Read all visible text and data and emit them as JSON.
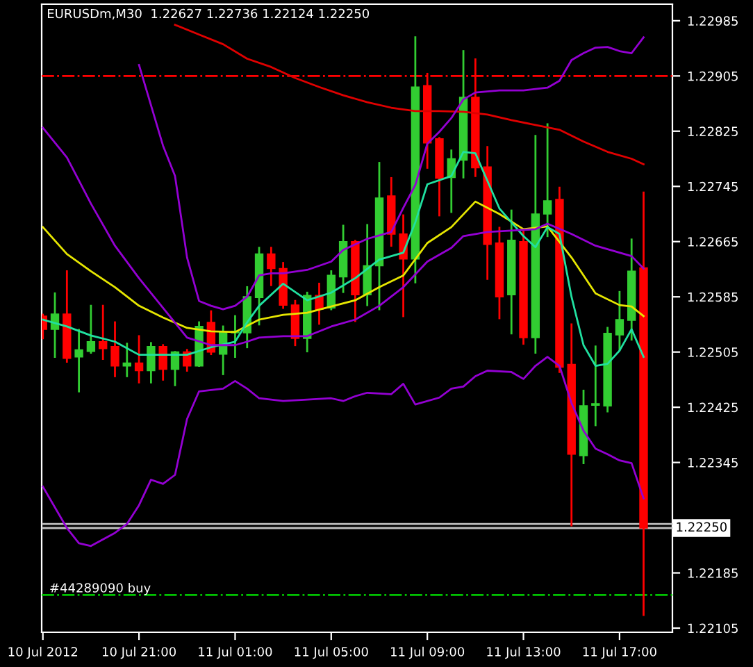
{
  "chart_data": {
    "type": "candlestick",
    "title": "EURUSDm,M30  1.22627 1.22736 1.22124 1.22250",
    "x": [
      "2012-07-10T17:00",
      "2012-07-10T17:30",
      "2012-07-10T18:00",
      "2012-07-10T18:30",
      "2012-07-10T19:00",
      "2012-07-10T19:30",
      "2012-07-10T20:00",
      "2012-07-10T20:30",
      "2012-07-10T21:00",
      "2012-07-10T21:30",
      "2012-07-10T22:00",
      "2012-07-10T22:30",
      "2012-07-10T23:00",
      "2012-07-10T23:30",
      "2012-07-11T00:00",
      "2012-07-11T00:30",
      "2012-07-11T01:00",
      "2012-07-11T01:30",
      "2012-07-11T02:00",
      "2012-07-11T02:30",
      "2012-07-11T03:00",
      "2012-07-11T03:30",
      "2012-07-11T04:00",
      "2012-07-11T04:30",
      "2012-07-11T05:00",
      "2012-07-11T05:30",
      "2012-07-11T06:00",
      "2012-07-11T06:30",
      "2012-07-11T07:00",
      "2012-07-11T07:30",
      "2012-07-11T08:00",
      "2012-07-11T08:30",
      "2012-07-11T09:00",
      "2012-07-11T09:30",
      "2012-07-11T10:00",
      "2012-07-11T10:30",
      "2012-07-11T11:00",
      "2012-07-11T11:30",
      "2012-07-11T12:00",
      "2012-07-11T12:30",
      "2012-07-11T13:00",
      "2012-07-11T13:30",
      "2012-07-11T14:00",
      "2012-07-11T14:30",
      "2012-07-11T15:00",
      "2012-07-11T15:30",
      "2012-07-11T16:00",
      "2012-07-11T16:30",
      "2012-07-11T17:00",
      "2012-07-11T17:30",
      "2012-07-11T18:00"
    ],
    "ohlc": [
      [
        1.22557,
        1.22559,
        1.22525,
        1.22538
      ],
      [
        1.22538,
        1.2259,
        1.22498,
        1.2256
      ],
      [
        1.2256,
        1.22622,
        1.22491,
        1.22496
      ],
      [
        1.22498,
        1.22537,
        1.22448,
        1.22508
      ],
      [
        1.22506,
        1.22572,
        1.22504,
        1.2252
      ],
      [
        1.2252,
        1.22572,
        1.22495,
        1.2251
      ],
      [
        1.22513,
        1.22548,
        1.2247,
        1.22485
      ],
      [
        1.22485,
        1.22517,
        1.2247,
        1.22489
      ],
      [
        1.22489,
        1.22528,
        1.22461,
        1.22478
      ],
      [
        1.22478,
        1.22518,
        1.22461,
        1.22513
      ],
      [
        1.22513,
        1.22515,
        1.22465,
        1.2248
      ],
      [
        1.2248,
        1.22505,
        1.22457,
        1.22505
      ],
      [
        1.22505,
        1.22508,
        1.22478,
        1.22485
      ],
      [
        1.22485,
        1.22548,
        1.22485,
        1.22542
      ],
      [
        1.22548,
        1.22564,
        1.22502,
        1.22505
      ],
      [
        1.22502,
        1.22542,
        1.22473,
        1.22533
      ],
      [
        1.22533,
        1.22557,
        1.22498,
        1.22535
      ],
      [
        1.22533,
        1.22599,
        1.22512,
        1.22585
      ],
      [
        1.22584,
        1.22656,
        1.22545,
        1.22647
      ],
      [
        1.22647,
        1.22656,
        1.22602,
        1.22626
      ],
      [
        1.22626,
        1.22634,
        1.22569,
        1.22573
      ],
      [
        1.22573,
        1.22579,
        1.22515,
        1.22525
      ],
      [
        1.22525,
        1.22591,
        1.22506,
        1.22587
      ],
      [
        1.22587,
        1.22604,
        1.22546,
        1.22567
      ],
      [
        1.22569,
        1.22622,
        1.22567,
        1.22616
      ],
      [
        1.22614,
        1.22688,
        1.22592,
        1.22665
      ],
      [
        1.22665,
        1.22666,
        1.2255,
        1.22588
      ],
      [
        1.22588,
        1.22689,
        1.22573,
        1.2263
      ],
      [
        1.2263,
        1.22779,
        1.22567,
        1.22728
      ],
      [
        1.22731,
        1.22757,
        1.22659,
        1.22676
      ],
      [
        1.22676,
        1.22703,
        1.22557,
        1.2264
      ],
      [
        1.2264,
        1.22961,
        1.22606,
        1.22889
      ],
      [
        1.22891,
        1.22908,
        1.22772,
        1.22808
      ],
      [
        1.22814,
        1.22815,
        1.22703,
        1.22757
      ],
      [
        1.22758,
        1.22797,
        1.22708,
        1.22785
      ],
      [
        1.22783,
        1.22941,
        1.22758,
        1.22874
      ],
      [
        1.22874,
        1.22929,
        1.2276,
        1.22772
      ],
      [
        1.22773,
        1.22802,
        1.22611,
        1.22661
      ],
      [
        1.22663,
        1.22685,
        1.22554,
        1.22585
      ],
      [
        1.22588,
        1.2271,
        1.22532,
        1.22667
      ],
      [
        1.22665,
        1.22683,
        1.22517,
        1.22526
      ],
      [
        1.22526,
        1.22818,
        1.22504,
        1.22705
      ],
      [
        1.22705,
        1.22835,
        1.22673,
        1.22724
      ],
      [
        1.22726,
        1.22743,
        1.22476,
        1.22483
      ],
      [
        1.22487,
        1.22545,
        1.22254,
        1.22357
      ],
      [
        1.22355,
        1.22449,
        1.22344,
        1.22427
      ],
      [
        1.22428,
        1.22513,
        1.22399,
        1.2243
      ],
      [
        1.22427,
        1.2254,
        1.22419,
        1.22532
      ],
      [
        1.2253,
        1.22592,
        1.22508,
        1.22552
      ],
      [
        1.22551,
        1.22668,
        1.22523,
        1.22622
      ],
      [
        1.22627,
        1.22736,
        1.22124,
        1.2225
      ]
    ],
    "colors": [
      "#ff0000",
      "#32cd32",
      "#ff0000",
      "#32cd32",
      "#32cd32",
      "#ff0000",
      "#ff0000",
      "#32cd32",
      "#ff0000",
      "#32cd32",
      "#ff0000",
      "#32cd32",
      "#ff0000",
      "#32cd32",
      "#ff0000",
      "#32cd32",
      "#32cd32",
      "#32cd32",
      "#32cd32",
      "#ff0000",
      "#ff0000",
      "#ff0000",
      "#32cd32",
      "#ff0000",
      "#32cd32",
      "#32cd32",
      "#ff0000",
      "#32cd32",
      "#32cd32",
      "#ff0000",
      "#ff0000",
      "#32cd32",
      "#ff0000",
      "#ff0000",
      "#32cd32",
      "#32cd32",
      "#ff0000",
      "#ff0000",
      "#ff0000",
      "#32cd32",
      "#ff0000",
      "#32cd32",
      "#32cd32",
      "#ff0000",
      "#ff0000",
      "#32cd32",
      "#32cd32",
      "#32cd32",
      "#32cd32",
      "#32cd32",
      "#ff0000"
    ],
    "series": [
      {
        "type": "line",
        "color": "#e00000",
        "x": [
          "2012-07-10T22:30",
          "2012-07-10T23:30",
          "2012-07-11T00:30",
          "2012-07-11T01:30",
          "2012-07-11T02:30",
          "2012-07-11T03:30",
          "2012-07-11T04:30",
          "2012-07-11T05:30",
          "2012-07-11T06:30",
          "2012-07-11T07:30",
          "2012-07-11T08:30",
          "2012-07-11T09:30",
          "2012-07-11T10:30",
          "2012-07-11T11:30",
          "2012-07-11T12:30",
          "2012-07-11T13:30",
          "2012-07-11T14:30",
          "2012-07-11T15:30",
          "2012-07-11T16:30",
          "2012-07-11T17:30",
          "2012-07-11T18:00"
        ],
        "values": [
          1.22979,
          1.22965,
          1.22951,
          1.2293,
          1.22918,
          1.22902,
          1.22889,
          1.22877,
          1.22867,
          1.22859,
          1.22854,
          1.22854,
          1.22853,
          1.22849,
          1.22841,
          1.22834,
          1.22827,
          1.2281,
          1.22795,
          1.22785,
          1.22777
        ]
      },
      {
        "type": "line",
        "color": "#e6e600",
        "x": [
          "2012-07-10T17:00",
          "2012-07-10T18:00",
          "2012-07-10T19:00",
          "2012-07-10T20:00",
          "2012-07-10T21:00",
          "2012-07-10T22:00",
          "2012-07-10T23:00",
          "2012-07-11T00:00",
          "2012-07-11T01:00",
          "2012-07-11T02:00",
          "2012-07-11T03:00",
          "2012-07-11T04:00",
          "2012-07-11T05:00",
          "2012-07-11T06:00",
          "2012-07-11T07:00",
          "2012-07-11T08:00",
          "2012-07-11T09:00",
          "2012-07-11T10:00",
          "2012-07-11T11:00",
          "2012-07-11T12:00",
          "2012-07-11T13:00",
          "2012-07-11T14:00",
          "2012-07-11T15:00",
          "2012-07-11T16:00",
          "2012-07-11T17:00",
          "2012-07-11T17:30",
          "2012-07-11T18:00"
        ],
        "values": [
          1.22686,
          1.22647,
          1.22622,
          1.22599,
          1.22572,
          1.22555,
          1.2254,
          1.22535,
          1.22534,
          1.22552,
          1.22559,
          1.22562,
          1.22571,
          1.2258,
          1.22599,
          1.22616,
          1.22663,
          1.22686,
          1.22723,
          1.22705,
          1.22683,
          1.22687,
          1.22642,
          1.2259,
          1.22573,
          1.22571,
          1.22557
        ]
      },
      {
        "type": "line",
        "color": "#20e0a0",
        "x": [
          "2012-07-10T17:00",
          "2012-07-10T18:00",
          "2012-07-10T19:00",
          "2012-07-10T20:00",
          "2012-07-10T21:00",
          "2012-07-10T22:00",
          "2012-07-10T23:00",
          "2012-07-11T00:00",
          "2012-07-11T01:00",
          "2012-07-11T01:30",
          "2012-07-11T02:00",
          "2012-07-11T03:00",
          "2012-07-11T04:00",
          "2012-07-11T05:00",
          "2012-07-11T06:00",
          "2012-07-11T07:00",
          "2012-07-11T08:00",
          "2012-07-11T08:30",
          "2012-07-11T09:00",
          "2012-07-11T10:00",
          "2012-07-11T10:30",
          "2012-07-11T11:00",
          "2012-07-11T11:30",
          "2012-07-11T12:00",
          "2012-07-11T13:00",
          "2012-07-11T13:30",
          "2012-07-11T14:00",
          "2012-07-11T14:30",
          "2012-07-11T15:00",
          "2012-07-11T15:30",
          "2012-07-11T16:00",
          "2012-07-11T16:30",
          "2012-07-11T17:00",
          "2012-07-11T17:30",
          "2012-07-11T18:00"
        ],
        "values": [
          1.22552,
          1.22542,
          1.22529,
          1.2252,
          1.22501,
          1.22501,
          1.22501,
          1.22512,
          1.2252,
          1.22548,
          1.22572,
          1.22604,
          1.2258,
          1.22591,
          1.22612,
          1.22639,
          1.22649,
          1.22693,
          1.22748,
          1.2276,
          1.22795,
          1.22793,
          1.22753,
          1.22713,
          1.22673,
          1.22657,
          1.22686,
          1.22676,
          1.22585,
          1.22515,
          1.22485,
          1.22488,
          1.22507,
          1.22538,
          1.22498
        ]
      },
      {
        "type": "line",
        "color": "#9400d3",
        "x": [
          "2012-07-10T21:00",
          "2012-07-10T22:00",
          "2012-07-10T22:30",
          "2012-07-10T23:00",
          "2012-07-10T23:30",
          "2012-07-11T00:00",
          "2012-07-11T00:30",
          "2012-07-11T01:00",
          "2012-07-11T01:30",
          "2012-07-11T02:00",
          "2012-07-11T02:30",
          "2012-07-11T03:00",
          "2012-07-11T04:00",
          "2012-07-11T05:00",
          "2012-07-11T05:30",
          "2012-07-11T06:30",
          "2012-07-11T07:30",
          "2012-07-11T08:00",
          "2012-07-11T08:30",
          "2012-07-11T09:00",
          "2012-07-11T09:30",
          "2012-07-11T10:00",
          "2012-07-11T10:30",
          "2012-07-11T11:00",
          "2012-07-11T12:00",
          "2012-07-11T13:00",
          "2012-07-11T14:00",
          "2012-07-11T14:30",
          "2012-07-11T15:00",
          "2012-07-11T15:30",
          "2012-07-11T16:00",
          "2012-07-11T16:30",
          "2012-07-11T17:00",
          "2012-07-11T17:30",
          "2012-07-11T18:00"
        ],
        "values": [
          1.22921,
          1.22804,
          1.2276,
          1.22642,
          1.22579,
          1.22572,
          1.22567,
          1.22572,
          1.22585,
          1.22616,
          1.22619,
          1.22619,
          1.22624,
          1.22636,
          1.22653,
          1.22669,
          1.22679,
          1.22714,
          1.22747,
          1.22807,
          1.22824,
          1.22844,
          1.22871,
          1.22881,
          1.22884,
          1.22884,
          1.22888,
          1.22898,
          1.22928,
          1.22938,
          1.22946,
          1.22947,
          1.22941,
          1.22938,
          1.22961
        ]
      },
      {
        "type": "line",
        "color": "#9400d3",
        "x": [
          "2012-07-10T17:00",
          "2012-07-10T18:00",
          "2012-07-10T19:00",
          "2012-07-10T20:00",
          "2012-07-10T21:00",
          "2012-07-10T22:00",
          "2012-07-10T23:00",
          "2012-07-11T00:00",
          "2012-07-11T01:00",
          "2012-07-11T01:30",
          "2012-07-11T02:00",
          "2012-07-11T03:00",
          "2012-07-11T04:00",
          "2012-07-11T05:00",
          "2012-07-11T06:00",
          "2012-07-11T07:00",
          "2012-07-11T08:00",
          "2012-07-11T09:00",
          "2012-07-11T10:00",
          "2012-07-11T10:30",
          "2012-07-11T11:30",
          "2012-07-11T12:30",
          "2012-07-11T13:30",
          "2012-07-11T14:00",
          "2012-07-11T15:00",
          "2012-07-11T16:00",
          "2012-07-11T17:00",
          "2012-07-11T17:30",
          "2012-07-11T18:00"
        ],
        "values": [
          1.2283,
          1.22787,
          1.2272,
          1.22659,
          1.22612,
          1.22569,
          1.22526,
          1.22515,
          1.22515,
          1.2252,
          1.22526,
          1.22528,
          1.22528,
          1.22542,
          1.22552,
          1.22572,
          1.22599,
          1.22636,
          1.22656,
          1.22673,
          1.22679,
          1.22681,
          1.22683,
          1.22691,
          1.22676,
          1.22659,
          1.22649,
          1.22644,
          1.22626
        ]
      },
      {
        "type": "line",
        "color": "#9400d3",
        "x": [
          "2012-07-10T17:00",
          "2012-07-10T18:00",
          "2012-07-10T18:30",
          "2012-07-10T19:00",
          "2012-07-10T20:00",
          "2012-07-10T20:30",
          "2012-07-10T21:00",
          "2012-07-10T21:30",
          "2012-07-10T22:00",
          "2012-07-10T22:30",
          "2012-07-10T23:00",
          "2012-07-10T23:30",
          "2012-07-11T00:30",
          "2012-07-11T01:00",
          "2012-07-11T01:30",
          "2012-07-11T02:00",
          "2012-07-11T03:00",
          "2012-07-11T04:00",
          "2012-07-11T05:00",
          "2012-07-11T05:30",
          "2012-07-11T06:00",
          "2012-07-11T06:30",
          "2012-07-11T07:30",
          "2012-07-11T08:00",
          "2012-07-11T08:30",
          "2012-07-11T09:30",
          "2012-07-11T10:00",
          "2012-07-11T10:30",
          "2012-07-11T11:00",
          "2012-07-11T11:30",
          "2012-07-11T12:30",
          "2012-07-11T13:00",
          "2012-07-11T13:30",
          "2012-07-11T14:00",
          "2012-07-11T14:30",
          "2012-07-11T15:00",
          "2012-07-11T15:30",
          "2012-07-11T16:00",
          "2012-07-11T16:30",
          "2012-07-11T17:00",
          "2012-07-11T17:30",
          "2012-07-11T18:00"
        ],
        "values": [
          1.2231,
          1.2225,
          1.22228,
          1.22224,
          1.22243,
          1.22256,
          1.22283,
          1.2232,
          1.22314,
          1.22327,
          1.22408,
          1.22448,
          1.22452,
          1.22463,
          1.22452,
          1.22438,
          1.22434,
          1.22436,
          1.22438,
          1.22434,
          1.22441,
          1.22446,
          1.22444,
          1.22459,
          1.22429,
          1.22439,
          1.22452,
          1.22455,
          1.2247,
          1.22478,
          1.22476,
          1.22466,
          1.22485,
          1.22498,
          1.22485,
          1.22431,
          1.22391,
          1.22365,
          1.22357,
          1.22348,
          1.22344,
          1.22293
        ]
      }
    ],
    "ref_lines": [
      {
        "axis": "y",
        "value": 1.22905,
        "label": null,
        "color": "#ff0000",
        "line_style": "dashdot"
      },
      {
        "axis": "y",
        "value": 1.22153,
        "label": "#44289090 buy",
        "color": "#00c000",
        "line_style": "dashdot"
      },
      {
        "axis": "y",
        "value": 1.22256,
        "label": null,
        "color": "#c0c0c0",
        "line_style": "solid"
      },
      {
        "axis": "y",
        "value": 1.2225,
        "label": "1.22250",
        "color": "#c0c0c0",
        "line_style": "solid"
      }
    ],
    "xlim": [
      "2012-07-10T16:57",
      "2012-07-11T19:12"
    ],
    "xticks": [
      {
        "value": "2012-07-10T17:00",
        "label": "10 Jul 2012"
      },
      {
        "value": "2012-07-10T21:00",
        "label": "10 Jul 21:00"
      },
      {
        "value": "2012-07-11T01:00",
        "label": "11 Jul 01:00"
      },
      {
        "value": "2012-07-11T05:00",
        "label": "11 Jul 05:00"
      },
      {
        "value": "2012-07-11T09:00",
        "label": "11 Jul 09:00"
      },
      {
        "value": "2012-07-11T13:00",
        "label": "11 Jul 13:00"
      },
      {
        "value": "2012-07-11T17:00",
        "label": "11 Jul 17:00"
      }
    ],
    "ylim": [
      1.22099,
      1.23009
    ],
    "yticks": [
      1.22985,
      1.22905,
      1.22825,
      1.22745,
      1.22665,
      1.22585,
      1.22505,
      1.22425,
      1.22345,
      1.22185,
      1.22105
    ],
    "grid": false,
    "legend": false
  }
}
